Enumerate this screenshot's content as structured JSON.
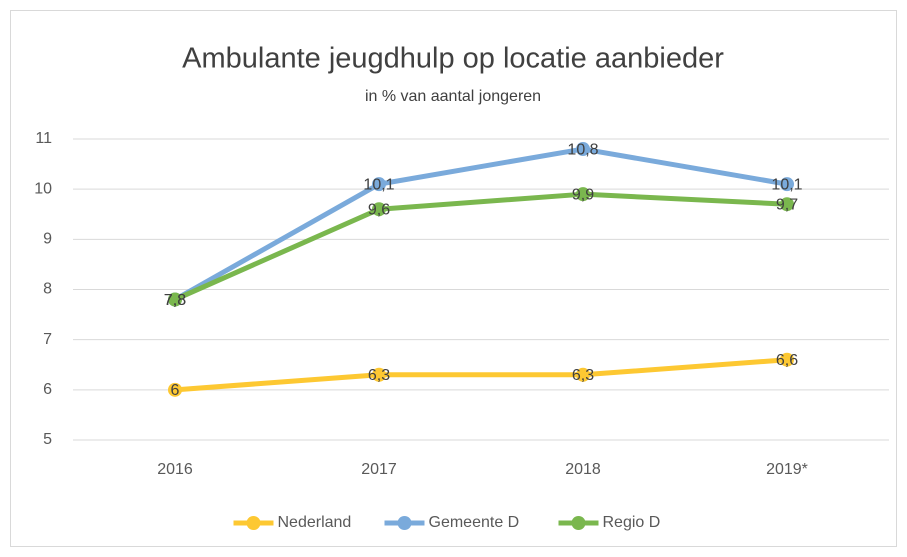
{
  "chart_data": {
    "type": "line",
    "title": "Ambulante jeugdhulp op locatie aanbieder",
    "subtitle": "in % van aantal jongeren",
    "categories": [
      "2016",
      "2017",
      "2018",
      "2019*"
    ],
    "series": [
      {
        "name": "Nederland",
        "color": "#fdc832",
        "values": [
          6,
          6.3,
          6.3,
          6.6
        ],
        "value_labels": [
          "6",
          "6,3",
          "6,3",
          "6,6"
        ]
      },
      {
        "name": "Gemeente D",
        "color": "#7aaadb",
        "values": [
          7.8,
          10.1,
          10.8,
          10.1
        ],
        "value_labels": [
          "7,8",
          "10,1",
          "10,8",
          "10,1"
        ]
      },
      {
        "name": "Regio D",
        "color": "#7ab74e",
        "values": [
          7.8,
          9.6,
          9.9,
          9.7
        ],
        "value_labels": [
          "7,8",
          "9,6",
          "9,9",
          "9,7"
        ]
      }
    ],
    "ylim": [
      5,
      11
    ],
    "yticks": [
      5,
      6,
      7,
      8,
      9,
      10,
      11
    ],
    "grid": true,
    "legend": "bottom"
  }
}
